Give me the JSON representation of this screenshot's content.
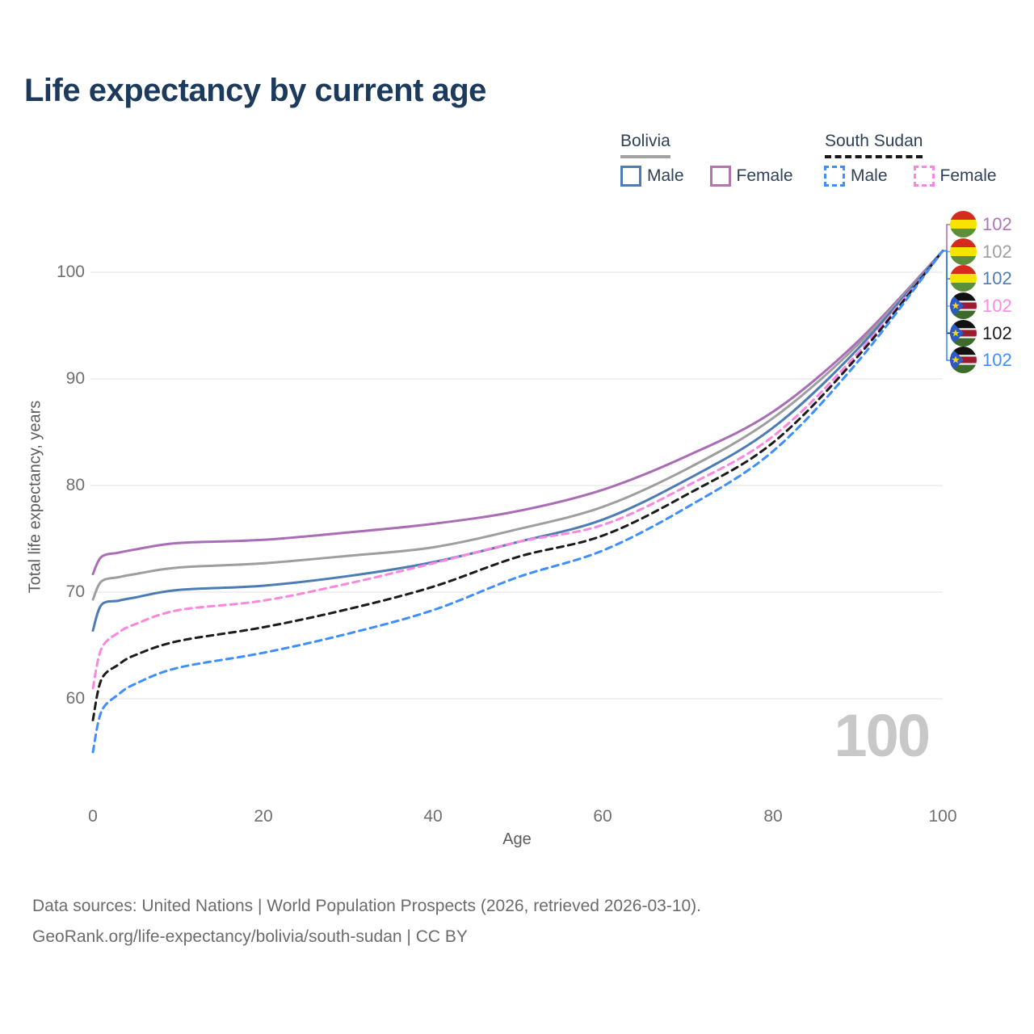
{
  "title": "Life expectancy by current age",
  "legend": {
    "bolivia": {
      "label": "Bolivia",
      "line_style": "solid",
      "male": {
        "label": "Male",
        "color": "#4d7cb5"
      },
      "female": {
        "label": "Female",
        "color": "#b077a8"
      }
    },
    "south_sudan": {
      "label": "South Sudan",
      "line_style": "dashed",
      "male": {
        "label": "Male",
        "color": "#3e8efd"
      },
      "female": {
        "label": "Female",
        "color": "#fb86de"
      }
    }
  },
  "chart_data": {
    "type": "line",
    "title": "Life expectancy by current age",
    "xlabel": "Age",
    "ylabel": "Total life expectancy, years",
    "xlim": [
      0,
      100
    ],
    "ylim": [
      54,
      104
    ],
    "x_ticks": [
      0,
      20,
      40,
      60,
      80,
      100
    ],
    "y_ticks": [
      100,
      90,
      80,
      70,
      60
    ],
    "grid": "horizontal-only",
    "legend_position": "top-right",
    "ages": [
      0,
      1,
      3,
      5,
      10,
      20,
      30,
      40,
      50,
      60,
      70,
      80,
      90,
      100
    ],
    "series": [
      {
        "name": "Bolivia Female",
        "country": "Bolivia",
        "sex": "Female",
        "color": "#aa6cb4",
        "dash": "solid",
        "values": [
          71.7,
          73.3,
          73.7,
          74.0,
          74.6,
          74.9,
          75.6,
          76.4,
          77.6,
          79.6,
          82.8,
          86.9,
          93.5,
          102
        ]
      },
      {
        "name": "Bolivia Both sexes",
        "country": "Bolivia",
        "sex": "Both",
        "color": "#9e9e9e",
        "dash": "solid",
        "values": [
          69.3,
          71.0,
          71.4,
          71.7,
          72.3,
          72.7,
          73.4,
          74.2,
          75.9,
          78.0,
          81.6,
          86.3,
          93.2,
          102
        ]
      },
      {
        "name": "Bolivia Male",
        "country": "Bolivia",
        "sex": "Male",
        "color": "#4d7cb5",
        "dash": "solid",
        "values": [
          66.4,
          68.8,
          69.2,
          69.5,
          70.2,
          70.6,
          71.5,
          72.8,
          74.7,
          76.8,
          80.6,
          85.4,
          92.8,
          102
        ]
      },
      {
        "name": "South Sudan Female",
        "country": "South Sudan",
        "sex": "Female",
        "color": "#fb86de",
        "dash": "dashed",
        "values": [
          61.0,
          64.7,
          66.2,
          67.0,
          68.3,
          69.2,
          70.8,
          72.7,
          74.7,
          76.3,
          80.0,
          84.6,
          92.4,
          102
        ]
      },
      {
        "name": "South Sudan Both sexes",
        "country": "South Sudan",
        "sex": "Both",
        "color": "#1b1b1b",
        "dash": "dashed",
        "values": [
          58.0,
          61.8,
          63.2,
          64.1,
          65.4,
          66.7,
          68.4,
          70.5,
          73.3,
          75.3,
          79.2,
          84.0,
          92.1,
          102
        ]
      },
      {
        "name": "South Sudan Male",
        "country": "South Sudan",
        "sex": "Male",
        "color": "#3e8efd",
        "dash": "dashed",
        "values": [
          55.0,
          58.8,
          60.4,
          61.4,
          62.9,
          64.3,
          66.1,
          68.3,
          71.4,
          73.9,
          78.0,
          83.2,
          91.6,
          102
        ]
      }
    ],
    "end_value": 102,
    "end_labels": [
      {
        "flag": "bolivia-flag",
        "value": 102,
        "color": "#b073b5",
        "series": "Bolivia Female"
      },
      {
        "flag": "bolivia-flag",
        "value": 102,
        "color": "#9e9e9e",
        "series": "Bolivia Both sexes"
      },
      {
        "flag": "bolivia-flag",
        "value": 102,
        "color": "#4d7cb5",
        "series": "Bolivia Male"
      },
      {
        "flag": "south-sudan-flag",
        "value": 102,
        "color": "#ff8ae0",
        "series": "South Sudan Female"
      },
      {
        "flag": "south-sudan-flag",
        "value": 102,
        "color": "#1b1b1b",
        "series": "South Sudan Both sexes"
      },
      {
        "flag": "south-sudan-flag",
        "value": 102,
        "color": "#3e8efd",
        "series": "South Sudan Male"
      }
    ],
    "watermark": "100"
  },
  "footer": {
    "line1": "Data sources: United Nations | World Population Prospects (2026, retrieved 2026-03-10).",
    "line2": "GeoRank.org/life-expectancy/bolivia/south-sudan | CC BY"
  }
}
